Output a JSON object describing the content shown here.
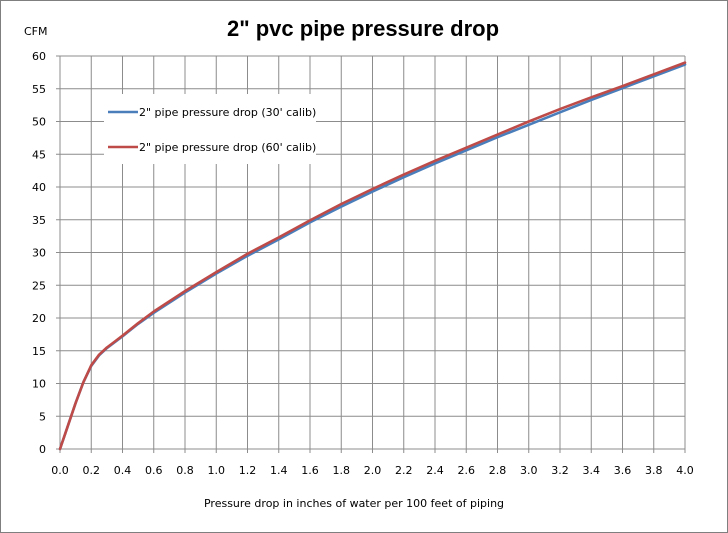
{
  "chart_data": {
    "type": "line",
    "title": "2\" pvc pipe pressure drop",
    "xlabel": "Pressure drop in inches of water per 100 feet of piping",
    "ylabel": "CFM",
    "xlim": [
      0.0,
      4.0
    ],
    "ylim": [
      0,
      60
    ],
    "x_ticks": [
      "0.0",
      "0.2",
      "0.4",
      "0.6",
      "0.8",
      "1.0",
      "1.2",
      "1.4",
      "1.6",
      "1.8",
      "2.0",
      "2.2",
      "2.4",
      "2.6",
      "2.8",
      "3.0",
      "3.2",
      "3.4",
      "3.6",
      "3.8",
      "4.0"
    ],
    "y_ticks": [
      "0",
      "5",
      "10",
      "15",
      "20",
      "25",
      "30",
      "35",
      "40",
      "45",
      "50",
      "55",
      "60"
    ],
    "grid": true,
    "legend_position": "upper-left",
    "series": [
      {
        "name": "2\" pipe pressure drop (30' calib)",
        "color": "#4a7ebb",
        "x": [
          0,
          0.05,
          0.1,
          0.15,
          0.2,
          0.25,
          0.3,
          0.35,
          0.4,
          0.5,
          0.6,
          0.8,
          1.0,
          1.2,
          1.4,
          1.6,
          1.8,
          2.0,
          2.2,
          2.4,
          2.6,
          2.8,
          3.0,
          3.2,
          3.4,
          3.6,
          3.8,
          4.0
        ],
        "y": [
          0,
          3.5,
          7,
          10.2,
          12.7,
          14.3,
          15.4,
          16.3,
          17.2,
          19.1,
          20.8,
          23.9,
          26.8,
          29.5,
          32.0,
          34.6,
          37.0,
          39.3,
          41.5,
          43.6,
          45.6,
          47.6,
          49.5,
          51.4,
          53.3,
          55.1,
          56.9,
          58.7
        ]
      },
      {
        "name": "2\" pipe pressure drop (60' calib)",
        "color": "#be4b48",
        "x": [
          0,
          0.05,
          0.1,
          0.15,
          0.2,
          0.25,
          0.3,
          0.35,
          0.4,
          0.5,
          0.6,
          0.8,
          1.0,
          1.2,
          1.4,
          1.6,
          1.8,
          2.0,
          2.2,
          2.4,
          2.6,
          2.8,
          3.0,
          3.2,
          3.4,
          3.6,
          3.8,
          4.0
        ],
        "y": [
          0,
          3.5,
          7,
          10.2,
          12.8,
          14.4,
          15.5,
          16.4,
          17.3,
          19.2,
          21.0,
          24.1,
          27.0,
          29.8,
          32.3,
          34.9,
          37.4,
          39.7,
          41.9,
          44.0,
          46.0,
          48.0,
          50.0,
          51.9,
          53.7,
          55.4,
          57.2,
          59.0
        ]
      }
    ]
  }
}
